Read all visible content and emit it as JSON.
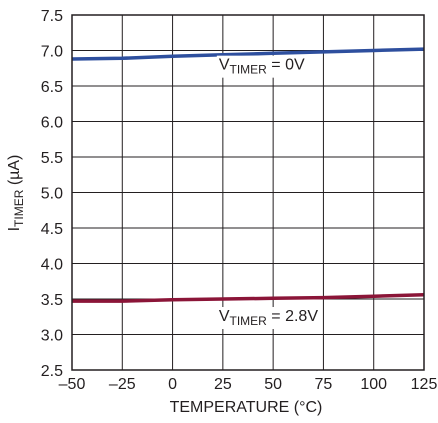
{
  "chart_data": {
    "type": "line",
    "title": "",
    "xlabel": "TEMPERATURE (°C)",
    "ylabel_main": "I",
    "ylabel_sub": "TIMER",
    "ylabel_unit": " (µA)",
    "xlim": [
      -50,
      125
    ],
    "ylim": [
      2.5,
      7.5
    ],
    "grid": true,
    "x_ticks": [
      -50,
      -25,
      0,
      25,
      50,
      75,
      100,
      125
    ],
    "x_tick_labels": [
      "–50",
      "–25",
      "0",
      "25",
      "50",
      "75",
      "100",
      "125"
    ],
    "y_ticks": [
      2.5,
      3.0,
      3.5,
      4.0,
      4.5,
      5.0,
      5.5,
      6.0,
      6.5,
      7.0,
      7.5
    ],
    "y_tick_labels": [
      "2.5",
      "3.0",
      "3.5",
      "4.0",
      "4.5",
      "5.0",
      "5.5",
      "6.0",
      "6.5",
      "7.0",
      "7.5"
    ],
    "series": [
      {
        "color": "#2e4f9e",
        "x": [
          -50,
          -25,
          0,
          25,
          50,
          75,
          100,
          125
        ],
        "y": [
          6.88,
          6.89,
          6.92,
          6.94,
          6.96,
          6.98,
          7.0,
          7.02
        ]
      },
      {
        "color": "#8b1538",
        "x": [
          -50,
          -25,
          0,
          25,
          50,
          75,
          100,
          125
        ],
        "y": [
          3.47,
          3.47,
          3.49,
          3.5,
          3.51,
          3.52,
          3.54,
          3.56
        ]
      }
    ],
    "annotations": [
      {
        "main": "V",
        "sub": "TIMER",
        "rest": " = 0V",
        "x": 23,
        "y": 6.73
      },
      {
        "main": "V",
        "sub": "TIMER",
        "rest": " = 2.8V",
        "x": 23,
        "y": 3.19
      }
    ]
  }
}
